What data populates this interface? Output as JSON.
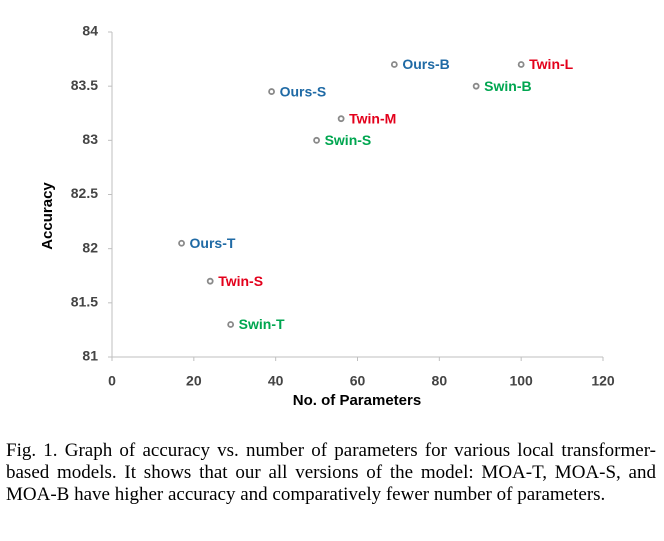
{
  "chart_data": {
    "type": "scatter",
    "xlabel": "No. of Parameters",
    "ylabel": "Accuracy",
    "xlim": [
      0,
      120
    ],
    "xticks": [
      0,
      20,
      40,
      60,
      80,
      100,
      120
    ],
    "ylim": [
      81,
      84
    ],
    "yticks": [
      81,
      81.5,
      82,
      82.5,
      83,
      83.5,
      84
    ],
    "grid": false,
    "marker_color": "#8a8a8a",
    "series": [
      {
        "color": "#1f6aa5",
        "labels": [
          "Ours-T",
          "Ours-S",
          "Ours-B"
        ],
        "x": [
          17,
          39,
          69
        ],
        "values": [
          82.05,
          83.45,
          83.7
        ]
      },
      {
        "color": "#e3001b",
        "labels": [
          "Twin-S",
          "Twin-M",
          "Twin-L"
        ],
        "x": [
          24,
          56,
          100
        ],
        "values": [
          81.7,
          83.2,
          83.7
        ]
      },
      {
        "color": "#00a650",
        "labels": [
          "Swin-T",
          "Swin-S",
          "Swin-B"
        ],
        "x": [
          29,
          50,
          89
        ],
        "values": [
          81.3,
          83.0,
          83.5
        ]
      }
    ]
  },
  "caption": "Fig. 1.  Graph of accuracy vs. number of parameters for various local transformer-based models. It shows that our all versions of the model: MOA-T, MOA-S, and MOA-B have higher accuracy and comparatively fewer number of parameters."
}
